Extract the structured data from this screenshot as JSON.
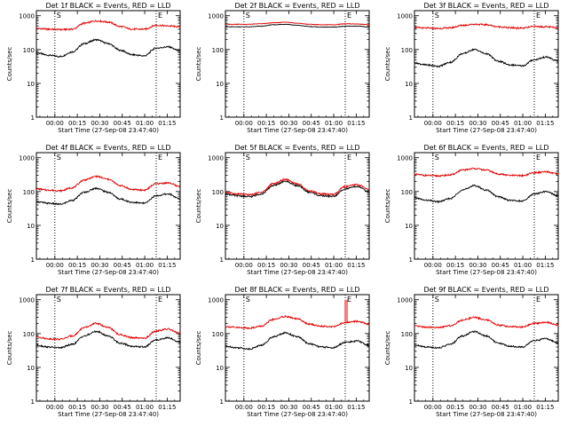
{
  "colors": {
    "events": "#000000",
    "lld": "#e00000",
    "axis": "#000000",
    "background": "#ffffff"
  },
  "shared_axes": {
    "ylabel": "Counts/sec",
    "xlabel": "Start Time (27-Sep-08 23:47:40)",
    "yticks": [
      "1",
      "10",
      "100",
      "1000"
    ],
    "xticks": [
      "00:00",
      "00:15",
      "00:30",
      "00:45",
      "01:00",
      "01:15"
    ],
    "xtick_minutes": [
      12.33,
      27.33,
      42.33,
      57.33,
      72.33,
      87.33
    ],
    "x_range_minutes": [
      0,
      96
    ],
    "y_range_log10": [
      0,
      3.15
    ],
    "marker_lines_minutes": [
      12.33,
      80
    ],
    "marker_glyphs": [
      "S",
      "E"
    ]
  },
  "panels": [
    {
      "title": "Det 1f BLACK = Events, RED = LLD"
    },
    {
      "title": "Det 2f BLACK = Events, RED = LLD"
    },
    {
      "title": "Det 3f BLACK = Events, RED = LLD"
    },
    {
      "title": "Det 4f BLACK = Events, RED = LLD"
    },
    {
      "title": "Det 5f BLACK = Events, RED = LLD"
    },
    {
      "title": "Det 6f BLACK = Events, RED = LLD"
    },
    {
      "title": "Det 7f BLACK = Events, RED = LLD"
    },
    {
      "title": "Det 8f BLACK = Events, RED = LLD"
    },
    {
      "title": "Det 9f BLACK = Events, RED = LLD"
    }
  ],
  "chart_data": [
    {
      "type": "line",
      "title": "Det 1f BLACK = Events, RED = LLD",
      "xlabel": "Start Time (27-Sep-08 23:47:40)",
      "ylabel": "Counts/sec",
      "yscale": "log",
      "ylim": [
        1,
        1400
      ],
      "x": [
        0,
        8,
        16,
        24,
        32,
        40,
        48,
        56,
        64,
        72,
        80,
        88,
        96
      ],
      "series": [
        {
          "name": "Events",
          "values": [
            80,
            68,
            62,
            85,
            150,
            195,
            150,
            95,
            70,
            65,
            110,
            120,
            90
          ]
        },
        {
          "name": "LLD",
          "values": [
            420,
            400,
            390,
            400,
            600,
            700,
            650,
            480,
            400,
            400,
            520,
            500,
            470
          ]
        }
      ]
    },
    {
      "type": "line",
      "title": "Det 2f BLACK = Events, RED = LLD",
      "xlabel": "Start Time (27-Sep-08 23:47:40)",
      "ylabel": "Counts/sec",
      "yscale": "log",
      "ylim": [
        1,
        1400
      ],
      "x": [
        0,
        8,
        16,
        24,
        32,
        40,
        48,
        56,
        64,
        72,
        80,
        88,
        96
      ],
      "series": [
        {
          "name": "Events",
          "values": [
            470,
            470,
            470,
            490,
            540,
            560,
            520,
            480,
            460,
            460,
            490,
            490,
            460
          ]
        },
        {
          "name": "LLD",
          "values": [
            560,
            560,
            560,
            580,
            620,
            640,
            600,
            560,
            540,
            540,
            580,
            570,
            540
          ]
        }
      ]
    },
    {
      "type": "line",
      "title": "Det 3f BLACK = Events, RED = LLD",
      "xlabel": "Start Time (27-Sep-08 23:47:40)",
      "ylabel": "Counts/sec",
      "yscale": "log",
      "ylim": [
        1,
        1400
      ],
      "x": [
        0,
        8,
        16,
        24,
        32,
        40,
        48,
        56,
        64,
        72,
        80,
        88,
        96
      ],
      "series": [
        {
          "name": "Events",
          "values": [
            40,
            35,
            32,
            42,
            75,
            100,
            75,
            45,
            35,
            33,
            50,
            60,
            45
          ]
        },
        {
          "name": "LLD",
          "values": [
            450,
            430,
            420,
            440,
            520,
            560,
            540,
            470,
            440,
            430,
            480,
            470,
            440
          ]
        }
      ]
    },
    {
      "type": "line",
      "title": "Det 4f BLACK = Events, RED = LLD",
      "xlabel": "Start Time (27-Sep-08 23:47:40)",
      "ylabel": "Counts/sec",
      "yscale": "log",
      "ylim": [
        1,
        1400
      ],
      "x": [
        0,
        8,
        16,
        24,
        32,
        40,
        48,
        56,
        64,
        72,
        80,
        88,
        96
      ],
      "series": [
        {
          "name": "Events",
          "values": [
            50,
            45,
            42,
            55,
            95,
            125,
            95,
            60,
            48,
            45,
            75,
            85,
            60
          ]
        },
        {
          "name": "LLD",
          "values": [
            120,
            110,
            105,
            130,
            220,
            280,
            230,
            150,
            115,
            110,
            170,
            180,
            140
          ]
        }
      ]
    },
    {
      "type": "line",
      "title": "Det 5f BLACK = Events, RED = LLD",
      "xlabel": "Start Time (27-Sep-08 23:47:40)",
      "ylabel": "Counts/sec",
      "yscale": "log",
      "ylim": [
        1,
        1400
      ],
      "x": [
        0,
        8,
        16,
        24,
        32,
        40,
        48,
        56,
        64,
        72,
        80,
        88,
        96
      ],
      "series": [
        {
          "name": "Events",
          "values": [
            85,
            75,
            70,
            85,
            150,
            200,
            150,
            95,
            75,
            72,
            120,
            140,
            100
          ]
        },
        {
          "name": "LLD",
          "values": [
            95,
            85,
            80,
            95,
            170,
            230,
            170,
            105,
            85,
            82,
            140,
            160,
            115
          ]
        }
      ]
    },
    {
      "type": "line",
      "title": "Det 6f BLACK = Events, RED = LLD",
      "xlabel": "Start Time (27-Sep-08 23:47:40)",
      "ylabel": "Counts/sec",
      "yscale": "log",
      "ylim": [
        1,
        1400
      ],
      "x": [
        0,
        8,
        16,
        24,
        32,
        40,
        48,
        56,
        64,
        72,
        80,
        88,
        96
      ],
      "series": [
        {
          "name": "Events",
          "values": [
            65,
            55,
            50,
            62,
            110,
            150,
            110,
            70,
            55,
            52,
            85,
            100,
            75
          ]
        },
        {
          "name": "LLD",
          "values": [
            320,
            300,
            290,
            310,
            430,
            480,
            430,
            330,
            300,
            295,
            360,
            380,
            330
          ]
        }
      ]
    },
    {
      "type": "line",
      "title": "Det 7f BLACK = Events, RED = LLD",
      "xlabel": "Start Time (27-Sep-08 23:47:40)",
      "ylabel": "Counts/sec",
      "yscale": "log",
      "ylim": [
        1,
        1400
      ],
      "x": [
        0,
        8,
        16,
        24,
        32,
        40,
        48,
        56,
        64,
        72,
        80,
        88,
        96
      ],
      "series": [
        {
          "name": "Events",
          "values": [
            45,
            40,
            38,
            48,
            85,
            115,
            85,
            52,
            42,
            40,
            65,
            75,
            55
          ]
        },
        {
          "name": "LLD",
          "values": [
            80,
            70,
            68,
            85,
            150,
            200,
            150,
            92,
            75,
            72,
            120,
            135,
            100
          ]
        }
      ]
    },
    {
      "type": "line",
      "title": "Det 8f BLACK = Events, RED = LLD",
      "xlabel": "Start Time (27-Sep-08 23:47:40)",
      "ylabel": "Counts/sec",
      "yscale": "log",
      "ylim": [
        1,
        1400
      ],
      "x": [
        0,
        8,
        16,
        24,
        32,
        40,
        48,
        56,
        64,
        72,
        80,
        88,
        96
      ],
      "series": [
        {
          "name": "Events",
          "values": [
            42,
            38,
            35,
            45,
            80,
            105,
            80,
            50,
            40,
            38,
            55,
            60,
            45
          ]
        },
        {
          "name": "LLD",
          "values": [
            160,
            150,
            145,
            165,
            260,
            320,
            270,
            190,
            165,
            160,
            210,
            230,
            190
          ]
        }
      ],
      "annotations": [
        {
          "series": "LLD",
          "spike_at_minute": 80,
          "spike_value": 1000
        }
      ]
    },
    {
      "type": "line",
      "title": "Det 9f BLACK = Events, RED = LLD",
      "xlabel": "Start Time (27-Sep-08 23:47:40)",
      "ylabel": "Counts/sec",
      "yscale": "log",
      "ylim": [
        1,
        1400
      ],
      "x": [
        0,
        8,
        16,
        24,
        32,
        40,
        48,
        56,
        64,
        72,
        80,
        88,
        96
      ],
      "series": [
        {
          "name": "Events",
          "values": [
            45,
            40,
            38,
            48,
            85,
            115,
            85,
            52,
            42,
            40,
            62,
            70,
            52
          ]
        },
        {
          "name": "LLD",
          "values": [
            165,
            155,
            150,
            170,
            250,
            300,
            250,
            180,
            160,
            155,
            200,
            215,
            180
          ]
        }
      ]
    }
  ]
}
